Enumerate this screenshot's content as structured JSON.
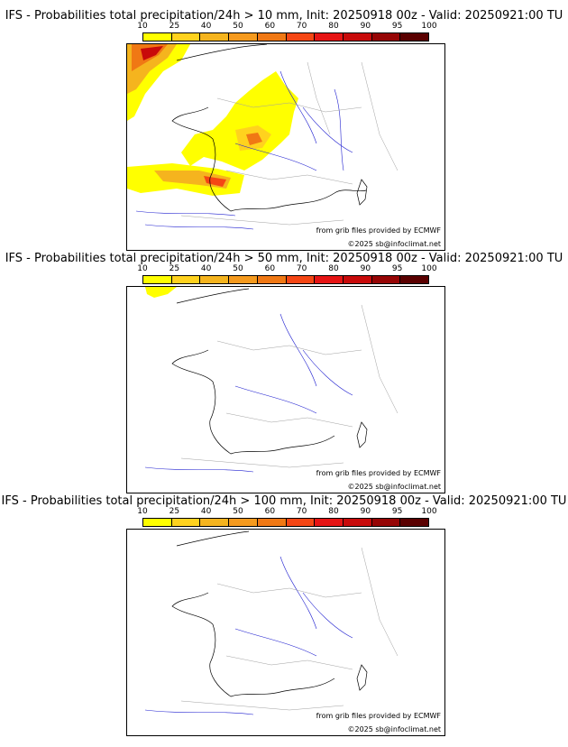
{
  "colorbar": {
    "ticks": [
      "10",
      "25",
      "40",
      "50",
      "60",
      "70",
      "80",
      "90",
      "95",
      "100"
    ],
    "colors": [
      "#ffff00",
      "#ffd21e",
      "#f5b41e",
      "#f59a1e",
      "#f07814",
      "#f54614",
      "#e61414",
      "#c80a0a",
      "#960505",
      "#5a0000"
    ]
  },
  "panels": [
    {
      "title": "IFS - Probabilities total precipitation/24h > 10 mm, Init: 20250918 00z - Valid: 20250921:00 TU"
    },
    {
      "title": "IFS - Probabilities total precipitation/24h > 50 mm, Init: 20250918 00z - Valid: 20250921:00 TU"
    },
    {
      "title": "IFS - Probabilities total precipitation/24h > 100 mm, Init: 20250918 00z - Valid: 20250921:00 TU"
    }
  ],
  "credits": {
    "source": "from grib files provided by ECMWF",
    "copyright": "©2025 sb@infoclimat.net"
  },
  "style": {
    "coast": "#000000",
    "river": "#2020d0",
    "border": "#a0a0a0"
  }
}
